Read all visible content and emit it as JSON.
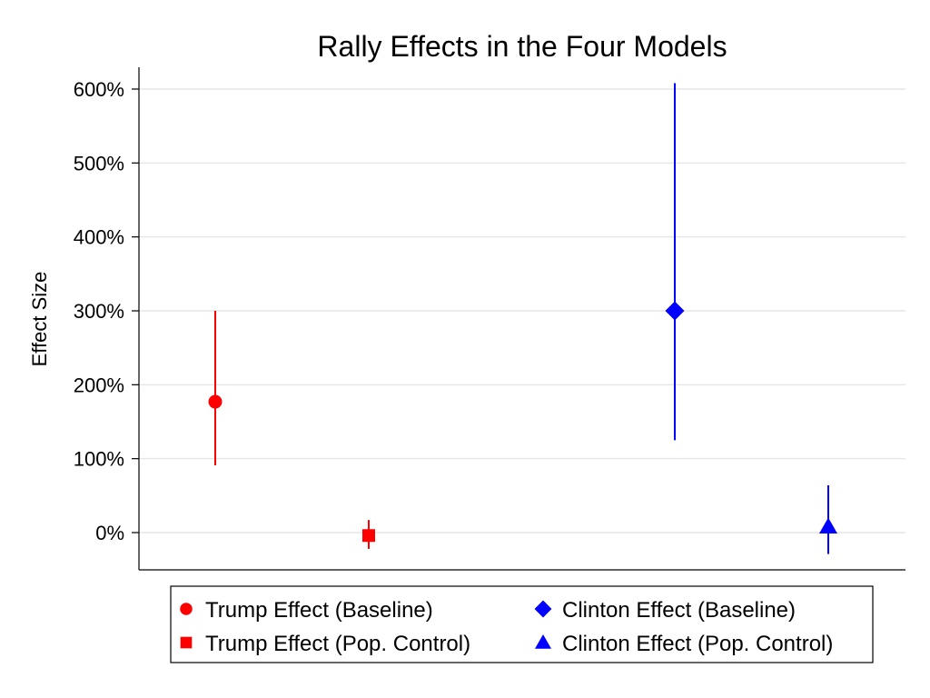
{
  "chart_data": {
    "type": "scatter",
    "title": "Rally Effects in the Four Models",
    "ylabel": "Effect Size",
    "xlabel": "",
    "ylim": [
      -50,
      630
    ],
    "yticks": [
      {
        "value": 0,
        "label": "0%"
      },
      {
        "value": 100,
        "label": "100%"
      },
      {
        "value": 200,
        "label": "200%"
      },
      {
        "value": 300,
        "label": "300%"
      },
      {
        "value": 400,
        "label": "400%"
      },
      {
        "value": 500,
        "label": "500%"
      },
      {
        "value": 600,
        "label": "600%"
      }
    ],
    "grid": true,
    "legend_position": "bottom",
    "series": [
      {
        "name": "Trump Effect (Baseline)",
        "marker": "circle",
        "color": "#ff0000",
        "position": 1,
        "estimate": 177,
        "ci_low": 91,
        "ci_high": 300
      },
      {
        "name": "Trump Effect (Pop. Control)",
        "marker": "square",
        "color": "#ff0000",
        "position": 2,
        "estimate": -4,
        "ci_low": -22,
        "ci_high": 17
      },
      {
        "name": "Clinton Effect (Baseline)",
        "marker": "diamond",
        "color": "#0000ff",
        "position": 4,
        "estimate": 300,
        "ci_low": 125,
        "ci_high": 608
      },
      {
        "name": "Clinton Effect (Pop. Control)",
        "marker": "triangle",
        "color": "#0000ff",
        "position": 5,
        "estimate": 8,
        "ci_low": -29,
        "ci_high": 64
      }
    ]
  }
}
